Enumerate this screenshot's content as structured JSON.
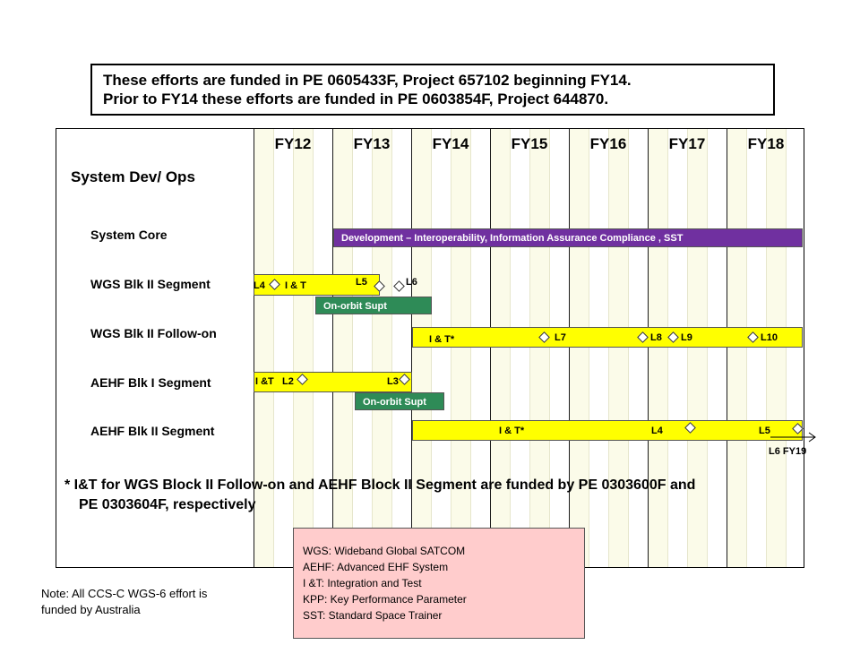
{
  "funding_note": {
    "line1": "These efforts are funded in PE 0605433F, Project 657102 beginning FY14.",
    "line2": "Prior to FY14 these efforts are funded in PE 0603854F, Project 644870."
  },
  "timeline": {
    "years": [
      "FY12",
      "FY13",
      "FY14",
      "FY15",
      "FY16",
      "FY17",
      "FY18"
    ],
    "heading": "System Dev/ Ops"
  },
  "rows": {
    "system_core": {
      "label": "System Core",
      "dev_bar": "Development – Interoperability, Information Assurance  Compliance , SST"
    },
    "wgs_blk2_segment": {
      "label": "WGS Blk II Segment",
      "l4": "L4",
      "it": "I & T",
      "l5": "L5",
      "l6": "L6",
      "ops_bar": "On-orbit  Supt"
    },
    "wgs_blk2_followon": {
      "label": "WGS Blk II Follow-on",
      "it": "I & T*",
      "l7": "L7",
      "l8": "L8",
      "l9": "L9",
      "l10": "L10"
    },
    "aehf_blk1_segment": {
      "label": "AEHF Blk I Segment",
      "it": "I &T",
      "l2": "L2",
      "l3": "L3",
      "ops_bar": "On-orbit  Supt"
    },
    "aehf_blk2_segment": {
      "label": "AEHF Blk II Segment",
      "it": "I & T*",
      "l4": "L4",
      "l5": "L5",
      "l6": "L6 FY19"
    }
  },
  "footnote": {
    "line1": "* I&T for WGS Block II Follow-on and AEHF Block II Segment are funded by PE 0303600F and",
    "line2": "PE 0303604F, respectively"
  },
  "legend": [
    "WGS: Wideband Global SATCOM",
    "AEHF: Advanced EHF System",
    "I &T: Integration  and Test",
    "KPP: Key Performance  Parameter",
    "SST: Standard Space Trainer"
  ],
  "note": {
    "line1": "Note:  All CCS-C WGS-6 effort is",
    "line2": "funded by Australia"
  },
  "colors": {
    "yellow_bar": "#ffff00",
    "green_bar": "#2e8b57",
    "purple_bar": "#7030a0",
    "legend_bg": "#ffcccc"
  }
}
